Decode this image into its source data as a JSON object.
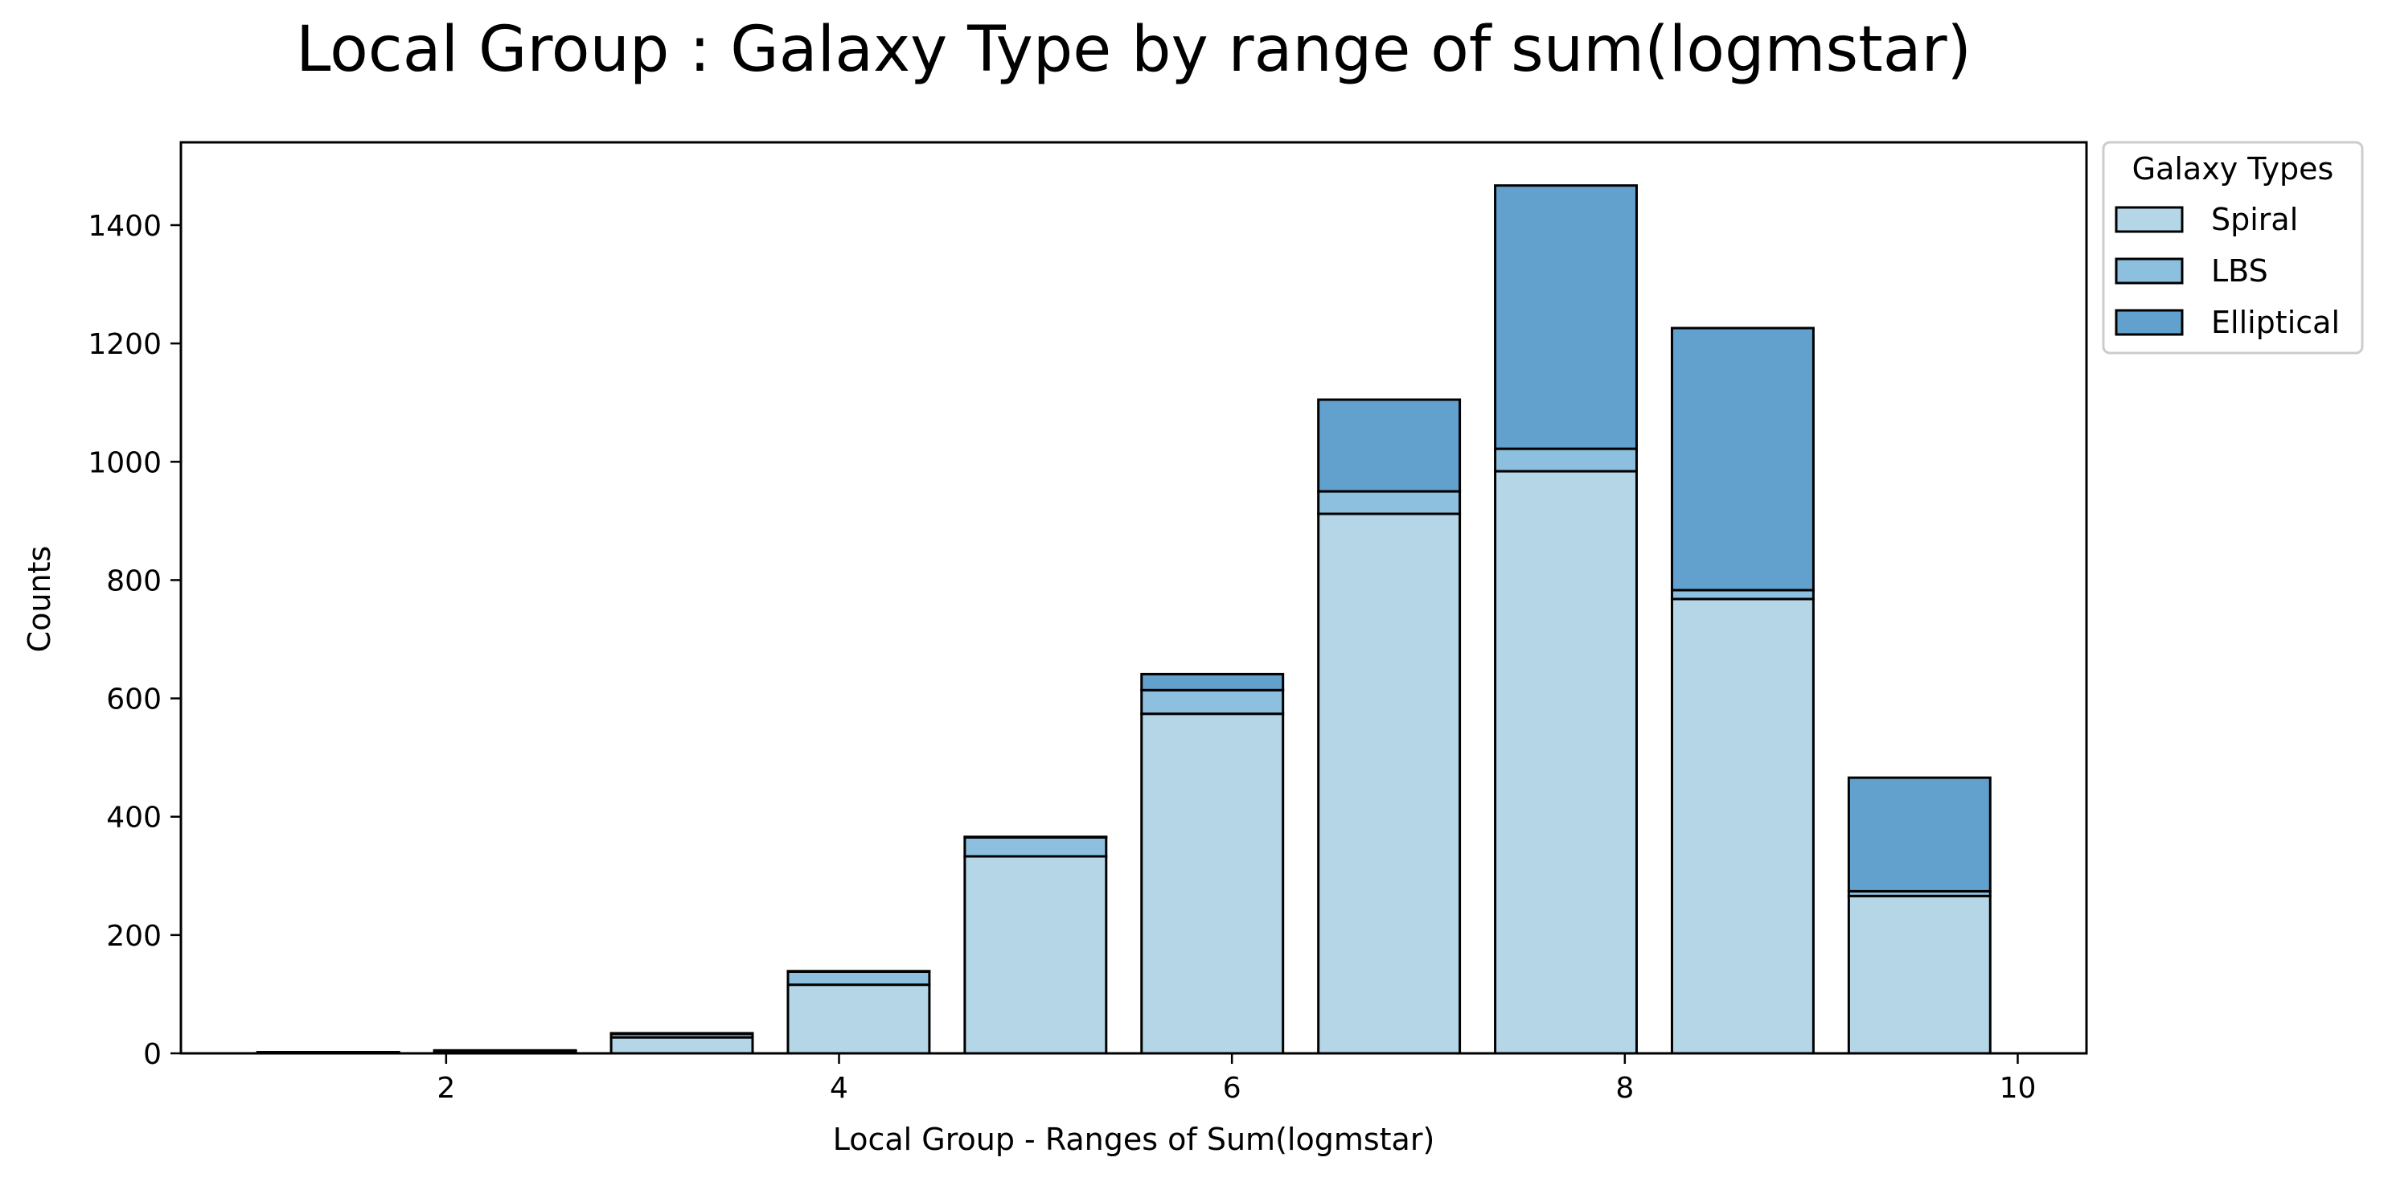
{
  "chart_data": {
    "type": "bar",
    "stacked": true,
    "title": "Local Group : Galaxy Type by range of sum(logmstar)",
    "xlabel": "Local Group - Ranges of Sum(logmstar)",
    "ylabel": "Counts",
    "xlim": [
      0.65,
      10.35
    ],
    "ylim": [
      0,
      1540
    ],
    "xticks": [
      2,
      4,
      6,
      8,
      10
    ],
    "yticks": [
      0,
      200,
      400,
      600,
      800,
      1000,
      1200,
      1400
    ],
    "bar_width": 0.72,
    "x": [
      1.4,
      2.3,
      3.2,
      4.1,
      5.0,
      5.9,
      6.8,
      7.7,
      8.6,
      9.5
    ],
    "series": [
      {
        "name": "Spiral",
        "color": "#b4d6e7",
        "values": [
          2,
          4,
          27,
          116,
          333,
          574,
          912,
          984,
          768,
          266
        ]
      },
      {
        "name": "LBS",
        "color": "#8dc0de",
        "values": [
          0,
          1,
          6,
          22,
          32,
          40,
          38,
          38,
          15,
          8
        ]
      },
      {
        "name": "Elliptical",
        "color": "#62a1cd",
        "values": [
          0,
          0,
          1,
          1,
          1,
          27,
          155,
          445,
          443,
          192
        ]
      }
    ],
    "legend": {
      "title": "Galaxy Types",
      "position": "outside-top-right"
    },
    "grid": false
  }
}
